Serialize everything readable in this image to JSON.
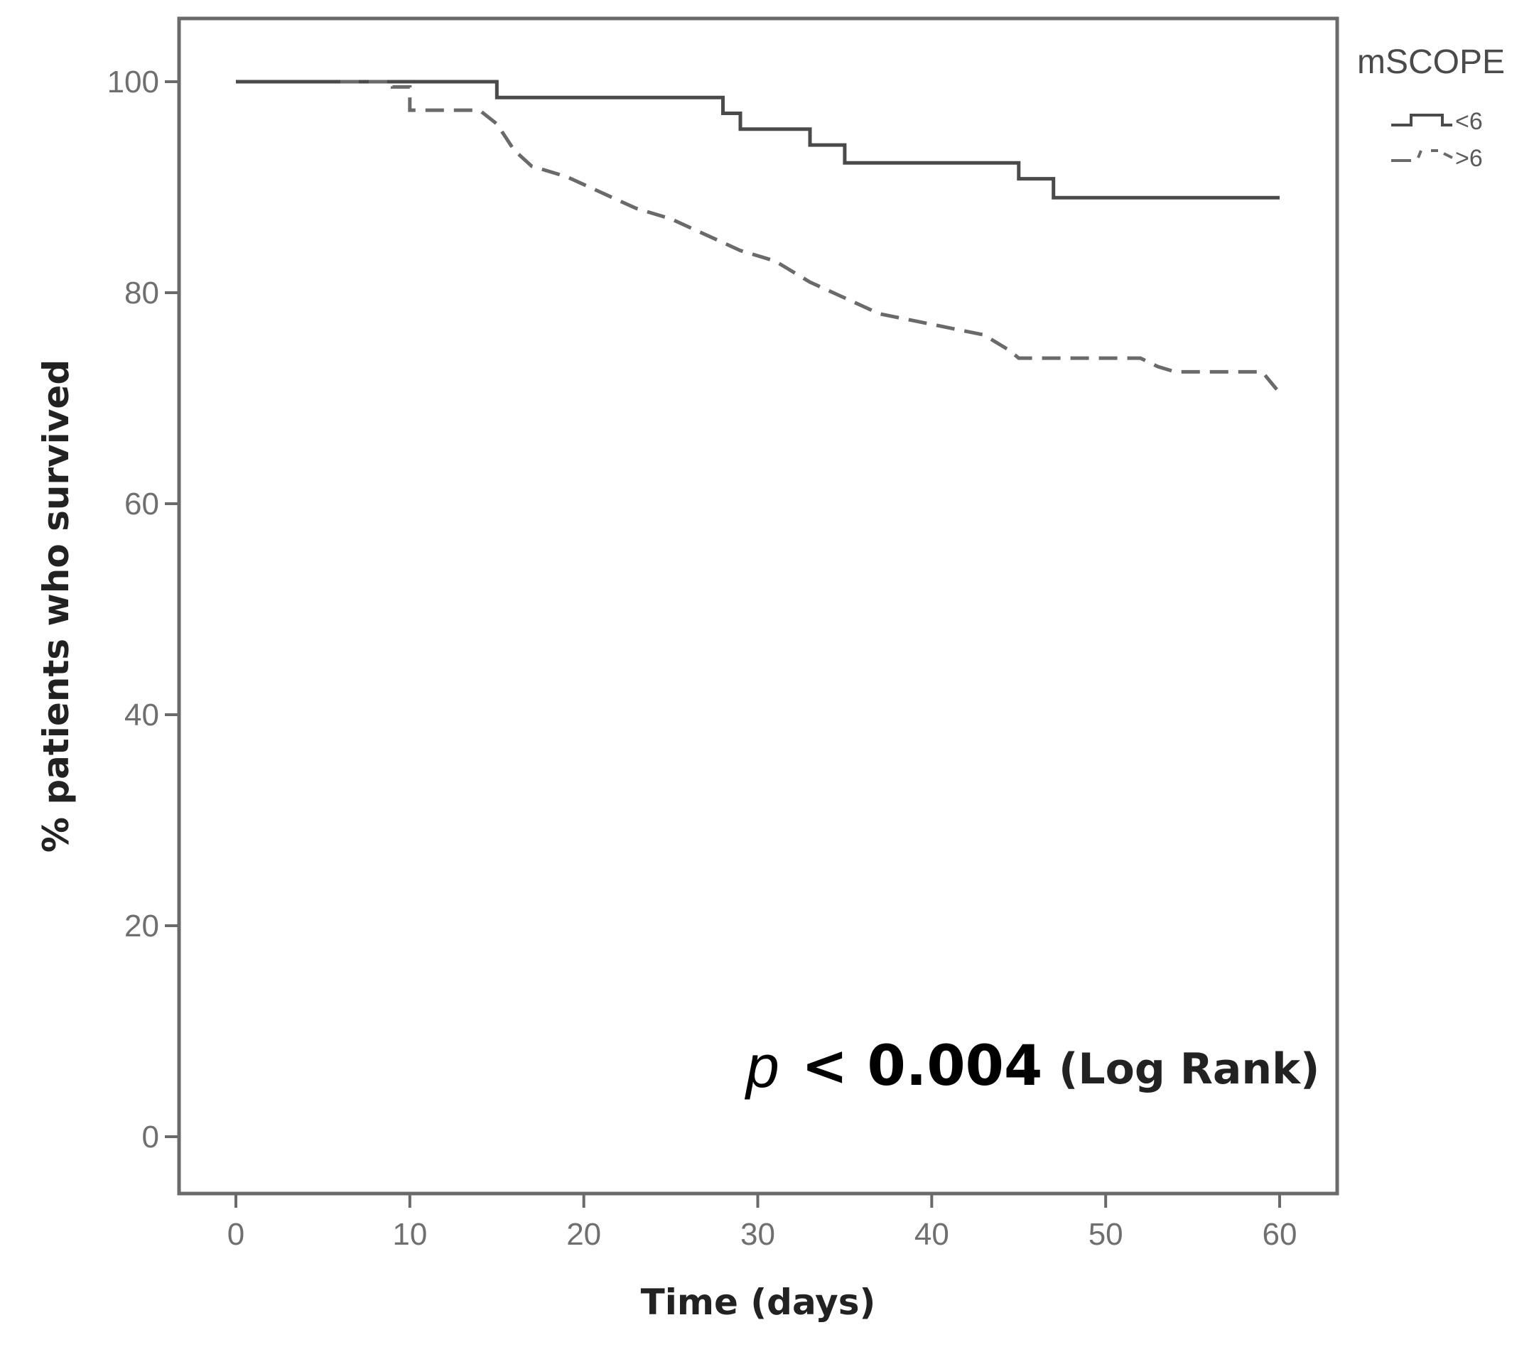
{
  "chart_data": {
    "type": "line",
    "xlabel": "Time (days)",
    "ylabel": "% patients who survived",
    "xlim": [
      0,
      60
    ],
    "ylim": [
      0,
      100
    ],
    "x_ticks": [
      0,
      10,
      20,
      30,
      40,
      50,
      60
    ],
    "y_ticks": [
      0,
      20,
      40,
      60,
      80,
      100
    ],
    "grid": false,
    "legend": {
      "title": "mSCOPE",
      "placement": "top-right outside"
    },
    "annotation": {
      "p_symbol": "p",
      "value_text": "< 0.004",
      "test_text": "(Log Rank)"
    },
    "series": [
      {
        "name": "<6",
        "style": "solid",
        "color": "#4a4a4a",
        "points": [
          [
            0,
            100
          ],
          [
            15,
            100
          ],
          [
            15,
            98.5
          ],
          [
            28,
            98.5
          ],
          [
            28,
            97
          ],
          [
            29,
            97
          ],
          [
            29,
            95.5
          ],
          [
            33,
            95.5
          ],
          [
            33,
            94
          ],
          [
            35,
            94
          ],
          [
            35,
            92.3
          ],
          [
            45,
            92.3
          ],
          [
            45,
            90.8
          ],
          [
            47,
            90.8
          ],
          [
            47,
            89
          ],
          [
            60,
            89
          ]
        ]
      },
      {
        "name": ">6",
        "style": "dashed",
        "color": "#6a6a6a",
        "points": [
          [
            6,
            100
          ],
          [
            9,
            100
          ],
          [
            9,
            99.5
          ],
          [
            10,
            99.5
          ],
          [
            10,
            97.3
          ],
          [
            14,
            97.3
          ],
          [
            15,
            96
          ],
          [
            16,
            93.5
          ],
          [
            17,
            92
          ],
          [
            19,
            91
          ],
          [
            21,
            89.5
          ],
          [
            23,
            88
          ],
          [
            25,
            87
          ],
          [
            27,
            85.5
          ],
          [
            29,
            84
          ],
          [
            31,
            83
          ],
          [
            33,
            81
          ],
          [
            35,
            79.5
          ],
          [
            37,
            78
          ],
          [
            40,
            77
          ],
          [
            43,
            76
          ],
          [
            44.5,
            74.5
          ],
          [
            45,
            73.8
          ],
          [
            52,
            73.8
          ],
          [
            53,
            73
          ],
          [
            54,
            72.5
          ],
          [
            59,
            72.5
          ],
          [
            60,
            70.5
          ]
        ]
      }
    ]
  }
}
